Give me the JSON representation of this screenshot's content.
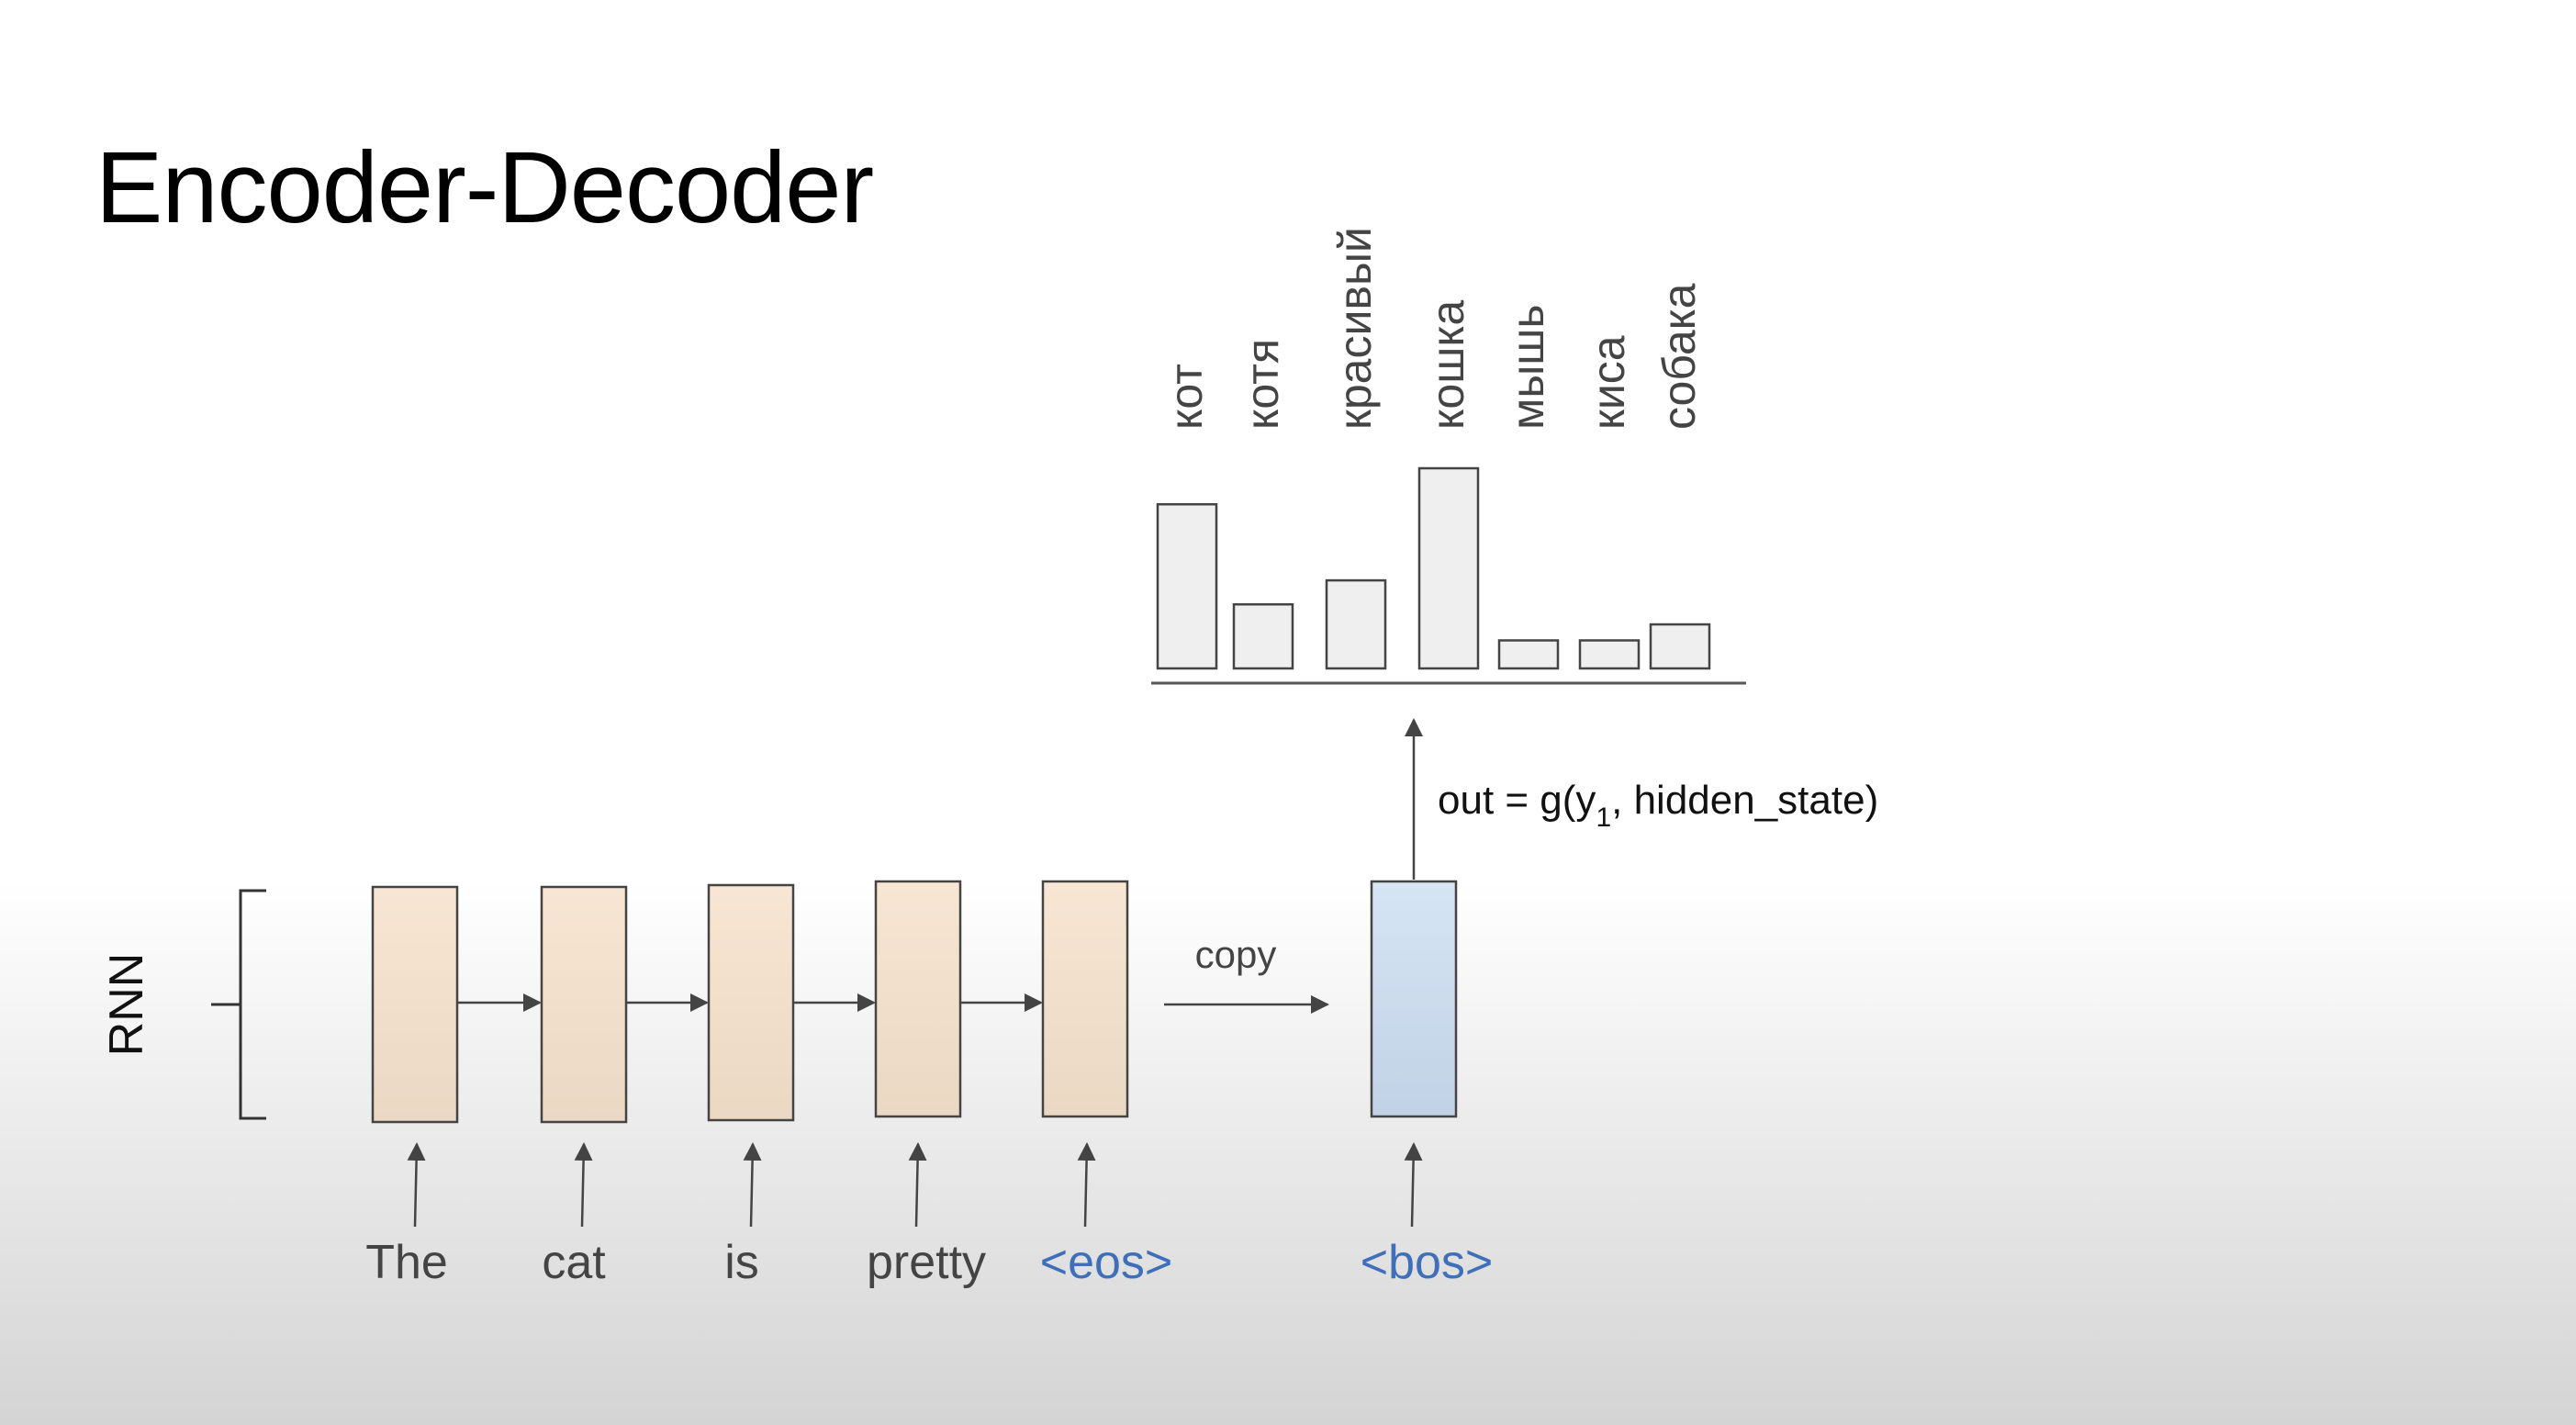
{
  "title": "Encoder-Decoder",
  "rnn_label": "RNN",
  "copy_label": "copy",
  "formula": {
    "prefix": "out = g(y",
    "subscript": "1",
    "suffix": ", hidden_state)"
  },
  "encoder_tokens": [
    {
      "text": "The",
      "special": false
    },
    {
      "text": "cat",
      "special": false
    },
    {
      "text": "is",
      "special": false
    },
    {
      "text": "pretty",
      "special": false
    },
    {
      "text": "<eos>",
      "special": true
    }
  ],
  "decoder_token": {
    "text": "<bos>",
    "special": true
  },
  "colors": {
    "encoder_cell_top": "#f8e6d4",
    "encoder_cell_bottom": "#ead8c3",
    "decoder_cell_top": "#d6e5f4",
    "decoder_cell_bottom": "#c1d2e6",
    "special_token": "#3f6fb8",
    "bar_fill": "#efefef",
    "stroke": "#444444"
  },
  "chart_data": {
    "type": "bar",
    "categories": [
      "кот",
      "котя",
      "красивый",
      "кошка",
      "мышь",
      "киса",
      "собака"
    ],
    "values": [
      0.82,
      0.32,
      0.44,
      1.0,
      0.14,
      0.14,
      0.22
    ]
  }
}
